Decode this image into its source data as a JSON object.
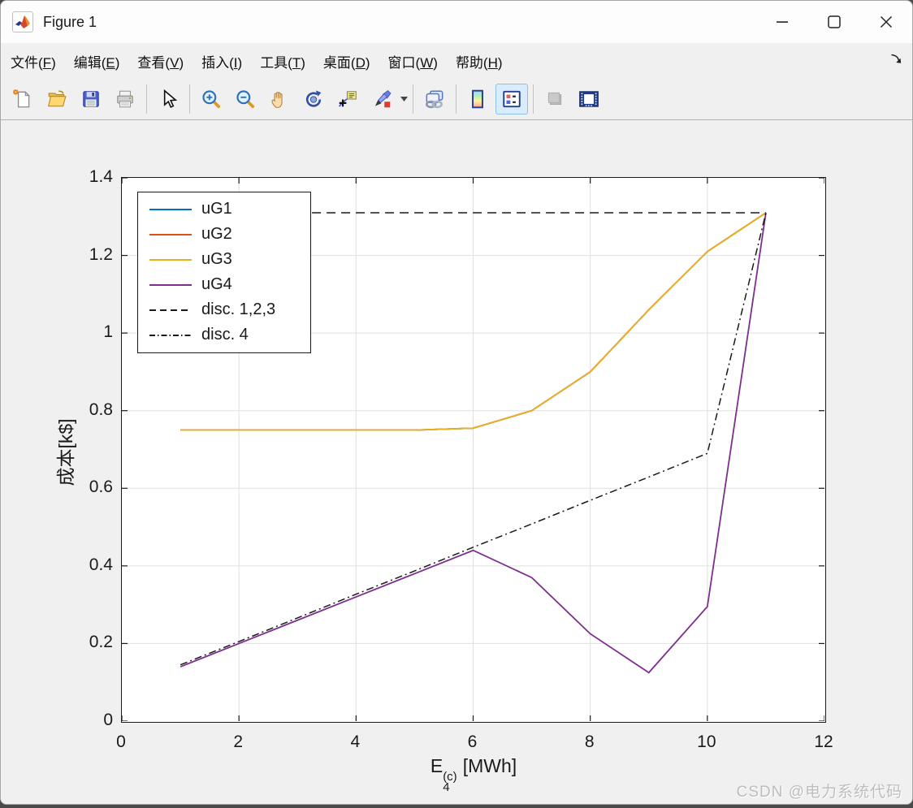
{
  "window": {
    "title": "Figure 1"
  },
  "menu": {
    "items": [
      {
        "label": "文件",
        "hotkey": "F"
      },
      {
        "label": "编辑",
        "hotkey": "E"
      },
      {
        "label": "查看",
        "hotkey": "V"
      },
      {
        "label": "插入",
        "hotkey": "I"
      },
      {
        "label": "工具",
        "hotkey": "T"
      },
      {
        "label": "桌面",
        "hotkey": "D"
      },
      {
        "label": "窗口",
        "hotkey": "W"
      },
      {
        "label": "帮助",
        "hotkey": "H"
      }
    ]
  },
  "toolbar": {
    "icons": [
      "new-figure-icon",
      "open-file-icon",
      "save-icon",
      "print-icon",
      "cursor-icon",
      "zoom-in-icon",
      "zoom-out-icon",
      "pan-icon",
      "rotate-3d-icon",
      "datatip-icon",
      "brush-icon",
      "link-plot-icon",
      "colorbar-icon",
      "legend-icon",
      "plot-browser-icon",
      "dock-plot-tools-icon"
    ],
    "active_icon": "legend-icon"
  },
  "chart_data": {
    "type": "line",
    "title": "",
    "xlabel_parts": {
      "base": "E",
      "sup": "(c)",
      "sub": "4",
      "unit": "[MWh]"
    },
    "ylabel": "成本[k$]",
    "xlim": [
      0,
      12
    ],
    "ylim": [
      0,
      1.4
    ],
    "xticks": [
      0,
      2,
      4,
      6,
      8,
      10,
      12
    ],
    "yticks": [
      0,
      0.2,
      0.4,
      0.6,
      0.8,
      1,
      1.2,
      1.4
    ],
    "xtick_labels": [
      "0",
      "2",
      "4",
      "6",
      "8",
      "10",
      "12"
    ],
    "ytick_labels": [
      "0",
      "0.2",
      "0.4",
      "0.6",
      "0.8",
      "1",
      "1.2",
      "1.4"
    ],
    "grid": true,
    "legend_position": "top-left",
    "x": [
      1,
      2,
      3,
      4,
      5,
      6,
      7,
      8,
      9,
      10,
      11
    ],
    "series": [
      {
        "name": "uG1",
        "color": "#0072BD",
        "style": "solid",
        "values": [
          0.75,
          0.75,
          0.75,
          0.75,
          0.75,
          0.755,
          0.8,
          0.9,
          1.06,
          1.21,
          1.31
        ]
      },
      {
        "name": "uG2",
        "color": "#D95319",
        "style": "solid",
        "values": [
          0.75,
          0.75,
          0.75,
          0.75,
          0.75,
          0.755,
          0.8,
          0.9,
          1.06,
          1.21,
          1.31
        ]
      },
      {
        "name": "uG3",
        "color": "#EDB120",
        "style": "solid",
        "values": [
          0.75,
          0.75,
          0.75,
          0.75,
          0.75,
          0.755,
          0.8,
          0.9,
          1.06,
          1.21,
          1.31
        ]
      },
      {
        "name": "uG4",
        "color": "#7E2F8E",
        "style": "solid",
        "values": [
          0.14,
          0.2,
          0.26,
          0.32,
          0.38,
          0.44,
          0.37,
          0.225,
          0.125,
          0.295,
          1.31
        ]
      },
      {
        "name": "disc. 1,2,3",
        "color": "#1a1a1a",
        "style": "dashed",
        "values": [
          1.31,
          1.31,
          1.31,
          1.31,
          1.31,
          1.31,
          1.31,
          1.31,
          1.31,
          1.31,
          1.31
        ]
      },
      {
        "name": "disc. 4",
        "color": "#1a1a1a",
        "style": "dashdot",
        "values": [
          0.145,
          0.205,
          0.266,
          0.327,
          0.387,
          0.448,
          0.508,
          0.569,
          0.629,
          0.69,
          1.31
        ]
      }
    ],
    "colors": {
      "grid": "#e0e0e0",
      "axis": "#1a1a1a"
    }
  },
  "watermark": "CSDN @电力系统代码"
}
